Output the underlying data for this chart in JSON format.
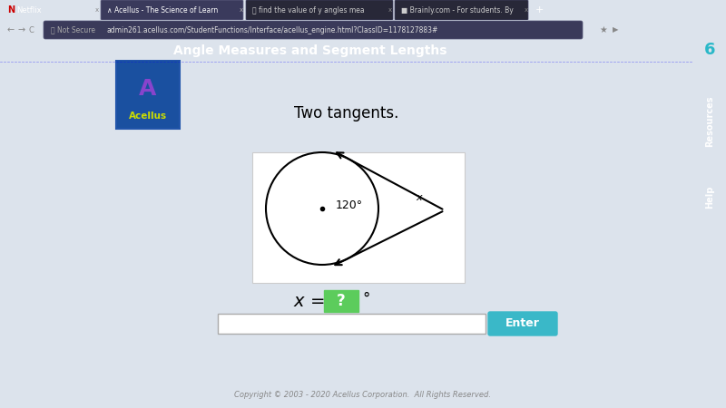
{
  "bg_color": "#dce3ec",
  "header_color": "#4a86c8",
  "header_text": "Angle Measures and Segment Lengths",
  "header_text_color": "#ffffff",
  "title_text": "Two tangents.",
  "arc_label": "120°",
  "angle_label": "x",
  "question_mark": "?",
  "degree_symbol": "°",
  "enter_btn_color": "#3ab8c8",
  "enter_btn_text": "Enter",
  "green_box_color": "#5ccc5c",
  "footer_text": "Copyright © 2003 - 2020 Acellus Corporation.  All Rights Reserved.",
  "footer_bg": "#2a2a3a",
  "footer_text_color": "#888888",
  "side_btn1_color": "#2ab8c8",
  "side_btn1_text": "Resources",
  "side_btn2_color": "#e8a020",
  "side_btn2_text": "Help",
  "number_6_color": "#2ab8c8",
  "tab_bar_color": "#202030",
  "addr_bar_color": "#282838",
  "acellus_logo_top": "#1a60a8",
  "acellus_logo_bot": "#1a3888",
  "diagram_border": "#cccccc",
  "diagram_bg": "#ffffff"
}
